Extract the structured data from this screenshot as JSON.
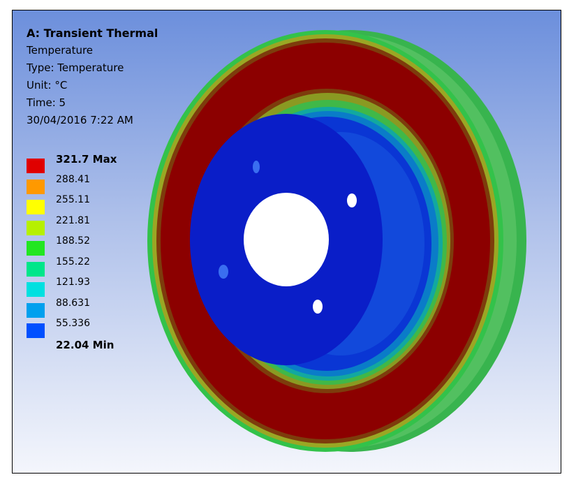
{
  "result": {
    "title": "A: Transient Thermal",
    "name": "Temperature",
    "type": "Type: Temperature",
    "unit": "Unit: °C",
    "time": "Time: 5",
    "timestamp": "30/04/2016 7:22 AM"
  },
  "legend": {
    "levels": [
      {
        "label": "321.7 Max",
        "color": "#e00000",
        "bold": true
      },
      {
        "label": "288.41",
        "color": "#ff9900",
        "bold": false
      },
      {
        "label": "255.11",
        "color": "#ffff00",
        "bold": false
      },
      {
        "label": "221.81",
        "color": "#b6f000",
        "bold": false
      },
      {
        "label": "188.52",
        "color": "#22e622",
        "bold": false
      },
      {
        "label": "155.22",
        "color": "#00e68a",
        "bold": false
      },
      {
        "label": "121.93",
        "color": "#00e0e0",
        "bold": false
      },
      {
        "label": "88.631",
        "color": "#00a0ee",
        "bold": false
      },
      {
        "label": "55.336",
        "color": "#0050ff",
        "bold": false
      },
      {
        "label": "22.04 Min",
        "color": "#0000ff",
        "bold": true
      }
    ]
  },
  "colors": {
    "hot": "#8b0000",
    "warm": "#7a7d1a",
    "mid": "#34b050",
    "cool": "#10b0a0",
    "cold": "#0a1ec8",
    "hole": "#ffffff"
  }
}
